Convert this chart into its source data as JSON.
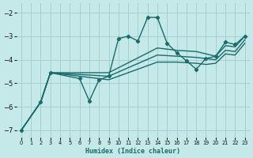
{
  "xlabel": "Humidex (Indice chaleur)",
  "bg_color": "#c5e8e8",
  "line_color": "#1a6b6b",
  "grid_color": "#a0cccc",
  "xlim": [
    -0.5,
    23.5
  ],
  "ylim": [
    -7.3,
    -1.6
  ],
  "yticks": [
    -7,
    -6,
    -5,
    -4,
    -3,
    -2
  ],
  "xticks": [
    0,
    1,
    2,
    3,
    4,
    5,
    6,
    7,
    8,
    9,
    10,
    11,
    12,
    13,
    14,
    15,
    16,
    17,
    18,
    19,
    20,
    21,
    22,
    23
  ],
  "line_jagged_x": [
    0,
    2,
    3,
    6,
    7,
    8,
    9,
    10,
    11,
    12,
    13,
    14,
    15,
    16,
    17,
    18,
    19,
    20,
    21,
    22,
    23
  ],
  "line_jagged_y": [
    -7.0,
    -5.8,
    -4.55,
    -4.8,
    -5.75,
    -4.85,
    -4.7,
    -3.1,
    -3.0,
    -3.2,
    -2.2,
    -2.2,
    -3.3,
    -3.7,
    -4.05,
    -4.4,
    -3.95,
    -3.85,
    -3.25,
    -3.35,
    -3.0
  ],
  "line_smooth1_x": [
    0,
    2,
    3,
    9,
    14,
    16,
    18,
    20,
    21,
    22,
    23
  ],
  "line_smooth1_y": [
    -7.0,
    -5.8,
    -4.55,
    -4.55,
    -3.5,
    -3.6,
    -3.65,
    -3.85,
    -3.4,
    -3.45,
    -3.0
  ],
  "line_smooth2_x": [
    0,
    2,
    3,
    9,
    14,
    16,
    18,
    20,
    21,
    22,
    23
  ],
  "line_smooth2_y": [
    -7.0,
    -5.8,
    -4.55,
    -4.7,
    -3.8,
    -3.85,
    -3.9,
    -4.0,
    -3.6,
    -3.65,
    -3.15
  ],
  "line_smooth3_x": [
    0,
    2,
    3,
    9,
    14,
    16,
    18,
    19,
    20,
    21,
    22,
    23
  ],
  "line_smooth3_y": [
    -7.0,
    -5.8,
    -4.55,
    -4.85,
    -4.1,
    -4.1,
    -4.15,
    -4.2,
    -4.15,
    -3.75,
    -3.8,
    -3.3
  ]
}
